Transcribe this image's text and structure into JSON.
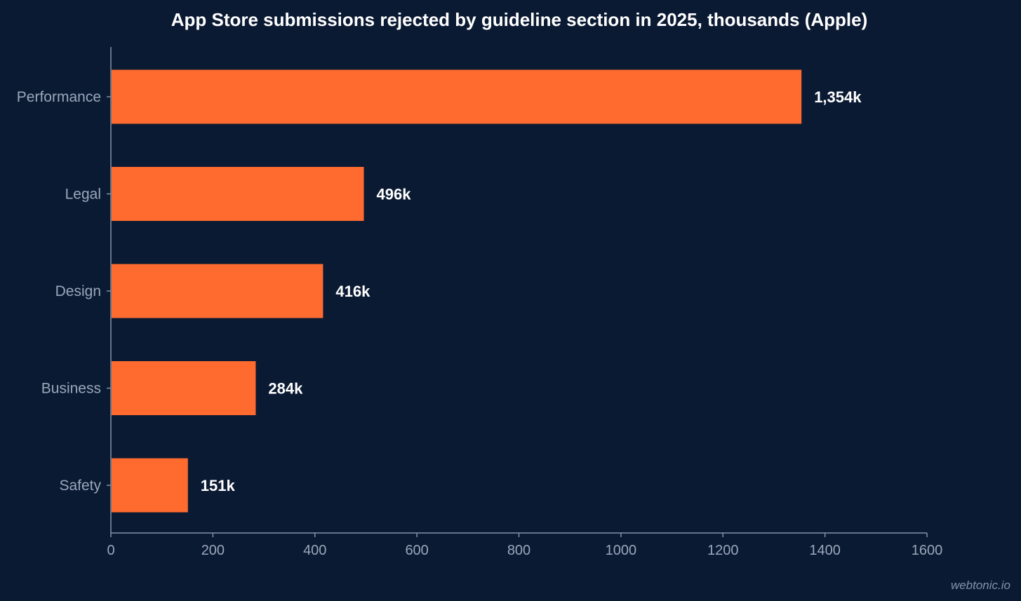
{
  "chart_data": {
    "type": "bar",
    "orientation": "horizontal",
    "title": "App Store submissions rejected by guideline section in 2025, thousands (Apple)",
    "xlabel": "",
    "ylabel": "",
    "categories": [
      "Performance",
      "Legal",
      "Design",
      "Business",
      "Safety"
    ],
    "values": [
      1354,
      496,
      416,
      284,
      151
    ],
    "value_labels": [
      "1,354k",
      "496k",
      "416k",
      "284k",
      "151k"
    ],
    "xlim": [
      0,
      1600
    ],
    "xticks": [
      0,
      200,
      400,
      600,
      800,
      1000,
      1200,
      1400,
      1600
    ],
    "grid": false,
    "legend": "none",
    "bar_color": "#ff6b2f",
    "background_color": "#0b1a33"
  },
  "watermark": "webtonic.io"
}
